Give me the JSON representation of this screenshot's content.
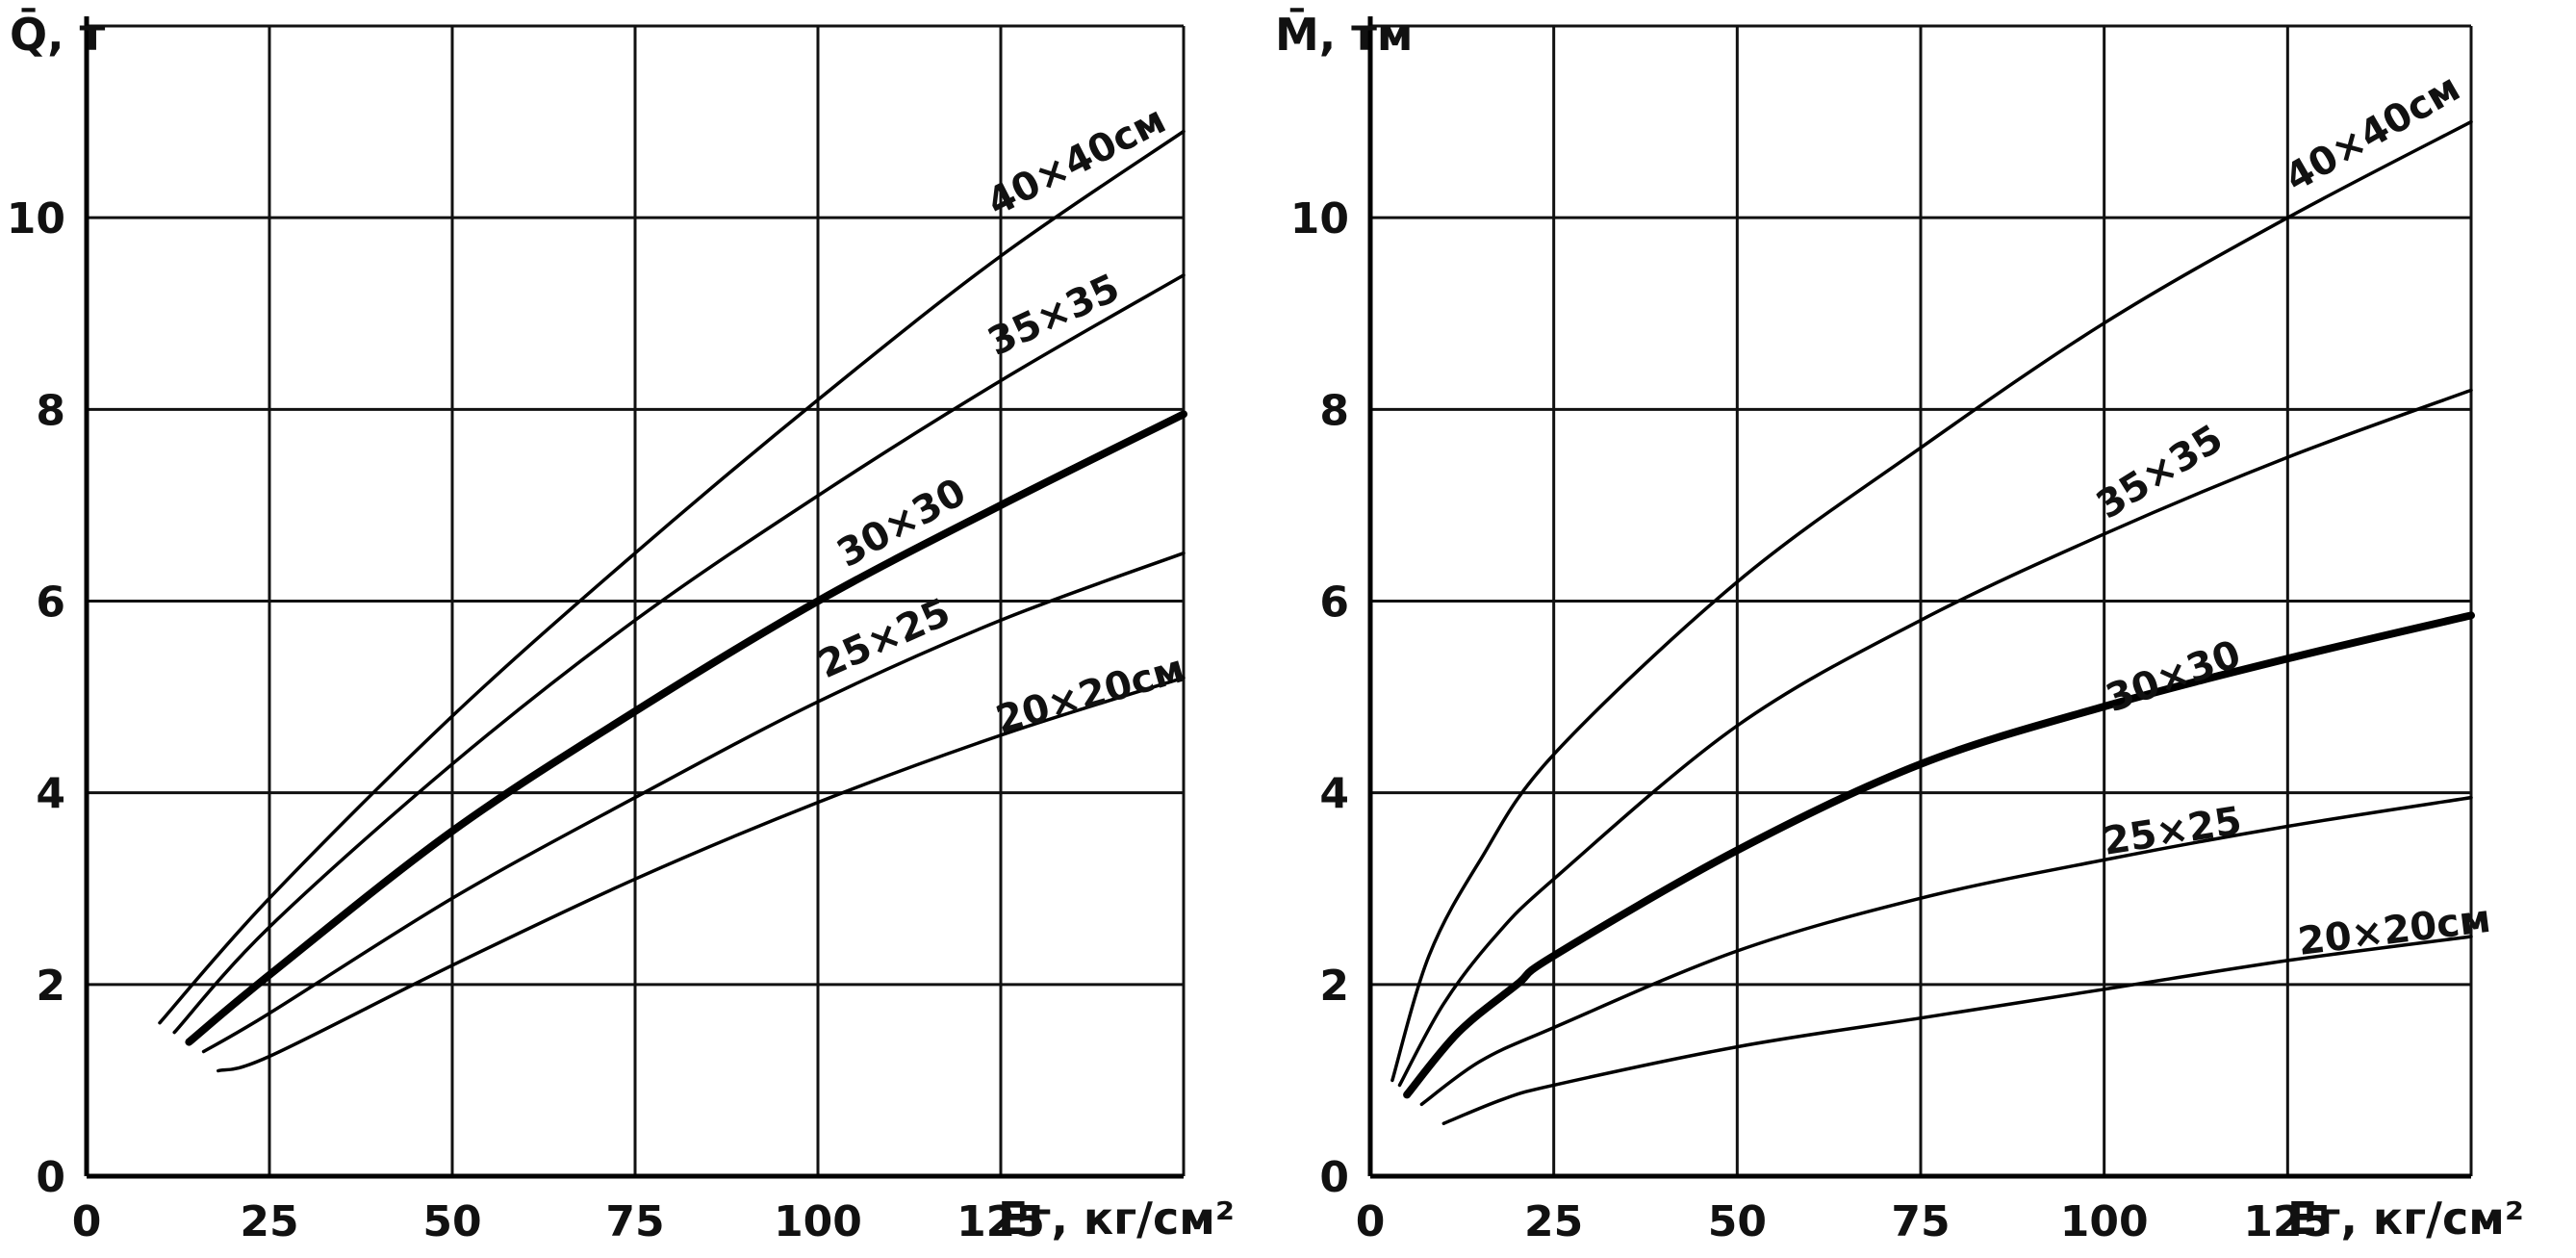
{
  "chart_data": [
    {
      "type": "line",
      "ylabel": "Q̄, т",
      "xlabel": "Eг, кг/см²",
      "xlim": [
        0,
        150
      ],
      "ylim": [
        0,
        12
      ],
      "xticks": [
        0,
        25,
        50,
        75,
        100,
        125
      ],
      "yticks": [
        0,
        2,
        4,
        6,
        8,
        10
      ],
      "grid": true,
      "series": [
        {
          "name": "40×40см",
          "bold": false,
          "x": [
            10,
            25,
            50,
            75,
            100,
            125,
            150
          ],
          "y": [
            1.6,
            2.9,
            4.8,
            6.5,
            8.1,
            9.6,
            10.9
          ]
        },
        {
          "name": "35×35",
          "bold": false,
          "x": [
            12,
            25,
            50,
            75,
            100,
            125,
            150
          ],
          "y": [
            1.5,
            2.6,
            4.3,
            5.8,
            7.1,
            8.3,
            9.4
          ]
        },
        {
          "name": "30×30",
          "bold": true,
          "x": [
            14,
            25,
            50,
            75,
            100,
            125,
            150
          ],
          "y": [
            1.4,
            2.1,
            3.6,
            4.85,
            6.0,
            7.0,
            7.95
          ]
        },
        {
          "name": "25×25",
          "bold": false,
          "x": [
            16,
            25,
            50,
            75,
            100,
            125,
            150
          ],
          "y": [
            1.3,
            1.7,
            2.9,
            3.95,
            4.95,
            5.8,
            6.5
          ]
        },
        {
          "name": "20×20см",
          "bold": false,
          "x": [
            18,
            25,
            50,
            75,
            100,
            125,
            150
          ],
          "y": [
            1.1,
            1.25,
            2.2,
            3.1,
            3.9,
            4.6,
            5.2
          ]
        }
      ]
    },
    {
      "type": "line",
      "ylabel": "M̄, тм",
      "xlabel": "Eг, кг/см²",
      "xlim": [
        0,
        150
      ],
      "ylim": [
        0,
        12
      ],
      "xticks": [
        0,
        25,
        50,
        75,
        100,
        125
      ],
      "yticks": [
        0,
        2,
        4,
        6,
        8,
        10
      ],
      "grid": true,
      "series": [
        {
          "name": "40×40см",
          "bold": false,
          "x": [
            3,
            8,
            15,
            25,
            50,
            75,
            100,
            125,
            150
          ],
          "y": [
            1.0,
            2.3,
            3.3,
            4.4,
            6.2,
            7.6,
            8.9,
            10.0,
            11.0
          ]
        },
        {
          "name": "35×35",
          "bold": false,
          "x": [
            4,
            10,
            17,
            25,
            50,
            75,
            100,
            125,
            150
          ],
          "y": [
            0.95,
            1.8,
            2.5,
            3.1,
            4.7,
            5.8,
            6.7,
            7.5,
            8.2
          ]
        },
        {
          "name": "30×30",
          "bold": true,
          "x": [
            5,
            12,
            20,
            25,
            50,
            75,
            100,
            125,
            150
          ],
          "y": [
            0.85,
            1.5,
            2.0,
            2.3,
            3.4,
            4.3,
            4.9,
            5.4,
            5.85
          ]
        },
        {
          "name": "25×25",
          "bold": false,
          "x": [
            7,
            15,
            25,
            50,
            75,
            100,
            125,
            150
          ],
          "y": [
            0.75,
            1.2,
            1.55,
            2.35,
            2.9,
            3.3,
            3.65,
            3.95
          ]
        },
        {
          "name": "20×20см",
          "bold": false,
          "x": [
            10,
            18,
            25,
            50,
            75,
            100,
            125,
            150
          ],
          "y": [
            0.55,
            0.8,
            0.95,
            1.35,
            1.65,
            1.95,
            2.25,
            2.5
          ]
        }
      ]
    }
  ]
}
